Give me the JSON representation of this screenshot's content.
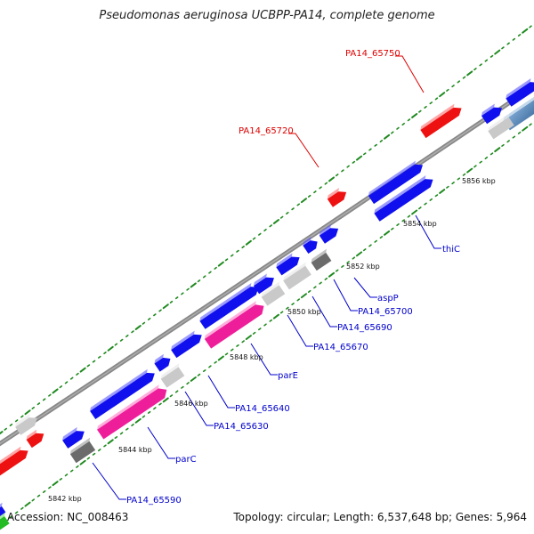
{
  "title": "Pseudomonas aeruginosa UCBPP-PA14, complete genome",
  "footer": {
    "accession": "Accession: NC_008463",
    "summary": "Topology: circular; Length: 6,537,648 bp; Genes: 5,964"
  },
  "colors": {
    "forward_gene": "#1010ee",
    "reverse_red": "#ee1111",
    "rrna_pink": "#ee1e9a",
    "grey_gene": "#c9c9c9",
    "dark_grey_gene": "#6b6b6b",
    "steel_blue": "#4a7fb3",
    "green_gene": "#22bb22",
    "backbone": "#888888",
    "tick": "#1f8a1f",
    "label_blue": "#0000cc",
    "label_red": "#dd0000"
  },
  "scale_ticks": [
    "5842 kbp",
    "5844 kbp",
    "5846 kbp",
    "5848 kbp",
    "5850 kbp",
    "5852 kbp",
    "5854 kbp",
    "5856 kbp"
  ],
  "gene_labels": [
    {
      "text": "PA14_65750",
      "color": "red"
    },
    {
      "text": "PA14_65720",
      "color": "red"
    },
    {
      "text": "thiC",
      "color": "blue"
    },
    {
      "text": "aspP",
      "color": "blue"
    },
    {
      "text": "PA14_65700",
      "color": "blue"
    },
    {
      "text": "PA14_65690",
      "color": "blue"
    },
    {
      "text": "PA14_65670",
      "color": "blue"
    },
    {
      "text": "parE",
      "color": "blue"
    },
    {
      "text": "PA14_65640",
      "color": "blue"
    },
    {
      "text": "PA14_65630",
      "color": "blue"
    },
    {
      "text": "parC",
      "color": "blue"
    },
    {
      "text": "PA14_65590",
      "color": "blue"
    }
  ]
}
